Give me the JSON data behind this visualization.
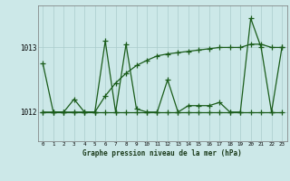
{
  "title": "Graphe pression niveau de la mer (hPa)",
  "bg_color": "#cce8e8",
  "grid_color": "#aacccc",
  "line_color": "#1a5c1a",
  "xlim": [
    -0.5,
    23.5
  ],
  "ylim": [
    1011.55,
    1013.65
  ],
  "yticks": [
    1012,
    1013
  ],
  "xticks": [
    0,
    1,
    2,
    3,
    4,
    5,
    6,
    7,
    8,
    9,
    10,
    11,
    12,
    13,
    14,
    15,
    16,
    17,
    18,
    19,
    20,
    21,
    22,
    23
  ],
  "series1": [
    1012.75,
    1012.0,
    1012.0,
    1012.2,
    1012.0,
    1012.0,
    1013.1,
    1012.0,
    1013.05,
    1012.05,
    1012.0,
    1012.0,
    1012.5,
    1012.0,
    1012.1,
    1012.1,
    1012.1,
    1012.15,
    1012.0,
    1012.0,
    1013.45,
    1013.0,
    1012.0,
    1013.0
  ],
  "series2": [
    1012.0,
    1012.0,
    1012.0,
    1012.0,
    1012.0,
    1012.0,
    1012.0,
    1012.0,
    1012.0,
    1012.0,
    1012.0,
    1012.0,
    1012.0,
    1012.0,
    1012.0,
    1012.0,
    1012.0,
    1012.0,
    1012.0,
    1012.0,
    1012.0,
    1012.0,
    1012.0,
    1012.0
  ],
  "series3": [
    1012.0,
    1012.0,
    1012.0,
    1012.0,
    1012.0,
    1012.0,
    1012.25,
    1012.45,
    1012.6,
    1012.72,
    1012.8,
    1012.87,
    1012.9,
    1012.92,
    1012.94,
    1012.96,
    1012.98,
    1013.0,
    1013.0,
    1013.0,
    1013.05,
    1013.05,
    1013.0,
    1013.0
  ]
}
